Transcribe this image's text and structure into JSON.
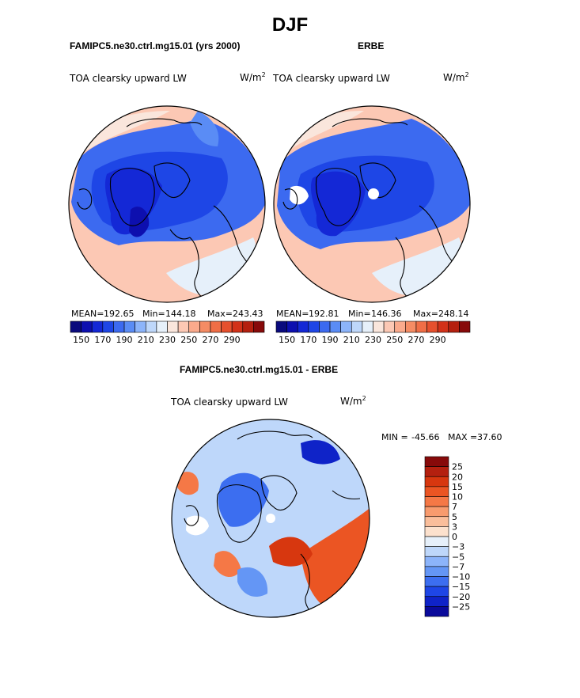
{
  "title": "DJF",
  "colors": {
    "continent_outline": "#000000",
    "missing_data": "#ffffff"
  },
  "chart_data": [
    {
      "type": "heatmap",
      "projection": "north-polar-stereographic",
      "title": "FAMIPC5.ne30.ctrl.mg15.01 (yrs 2000)",
      "variable": "TOA clearsky upward LW",
      "units": "W/m",
      "units_exp": "2",
      "stats": {
        "mean_label": "MEAN=",
        "mean": "192.65",
        "min_label": "Min=",
        "min": "144.18",
        "max_label": "Max=",
        "max": "243.43"
      },
      "colorbar": {
        "orientation": "horizontal",
        "tick_labels": [
          "150",
          "170",
          "190",
          "210",
          "230",
          "250",
          "270",
          "290"
        ],
        "colors": [
          "#0a0a7d",
          "#0d0faf",
          "#1428d6",
          "#1e46e6",
          "#3c6af0",
          "#5a8cf5",
          "#8cb4fa",
          "#bed7fa",
          "#e6f0fa",
          "#fae6dc",
          "#fcc8b4",
          "#faaa8c",
          "#f58c64",
          "#f06e46",
          "#e6502d",
          "#d23219",
          "#b4200f",
          "#870a0a"
        ]
      }
    },
    {
      "type": "heatmap",
      "projection": "north-polar-stereographic",
      "title": "ERBE",
      "variable": "TOA clearsky upward LW",
      "units": "W/m",
      "units_exp": "2",
      "stats": {
        "mean_label": "MEAN=",
        "mean": "192.81",
        "min_label": "Min=",
        "min": "146.36",
        "max_label": "Max=",
        "max": "248.14"
      },
      "colorbar": {
        "orientation": "horizontal",
        "tick_labels": [
          "150",
          "170",
          "190",
          "210",
          "230",
          "250",
          "270",
          "290"
        ],
        "colors": [
          "#0a0a7d",
          "#0d0faf",
          "#1428d6",
          "#1e46e6",
          "#3c6af0",
          "#5a8cf5",
          "#8cb4fa",
          "#bed7fa",
          "#e6f0fa",
          "#fae6dc",
          "#fcc8b4",
          "#faaa8c",
          "#f58c64",
          "#f06e46",
          "#e6502d",
          "#d23219",
          "#b4200f",
          "#870a0a"
        ]
      }
    },
    {
      "type": "heatmap",
      "projection": "north-polar-stereographic",
      "title": "FAMIPC5.ne30.ctrl.mg15.01 - ERBE",
      "variable": "TOA clearsky upward LW",
      "units": "W/m",
      "units_exp": "2",
      "stats": {
        "min_label": "MIN =",
        "min": "-45.66",
        "max_label": "MAX =",
        "max": "37.60"
      },
      "colorbar": {
        "orientation": "vertical",
        "tick_labels": [
          "25",
          "20",
          "15",
          "10",
          "7",
          "5",
          "3",
          "0",
          "−3",
          "−5",
          "−7",
          "−10",
          "−15",
          "−20",
          "−25"
        ],
        "colors": [
          "#870a0a",
          "#b4200f",
          "#d7370f",
          "#eb5523",
          "#f57846",
          "#f89b6e",
          "#fabe9b",
          "#fce1cd",
          "#e6f0fa",
          "#bed7fa",
          "#8cb4fa",
          "#6496f5",
          "#3c6ef0",
          "#1e46e6",
          "#0f23c8",
          "#0a0a9b"
        ]
      }
    }
  ]
}
